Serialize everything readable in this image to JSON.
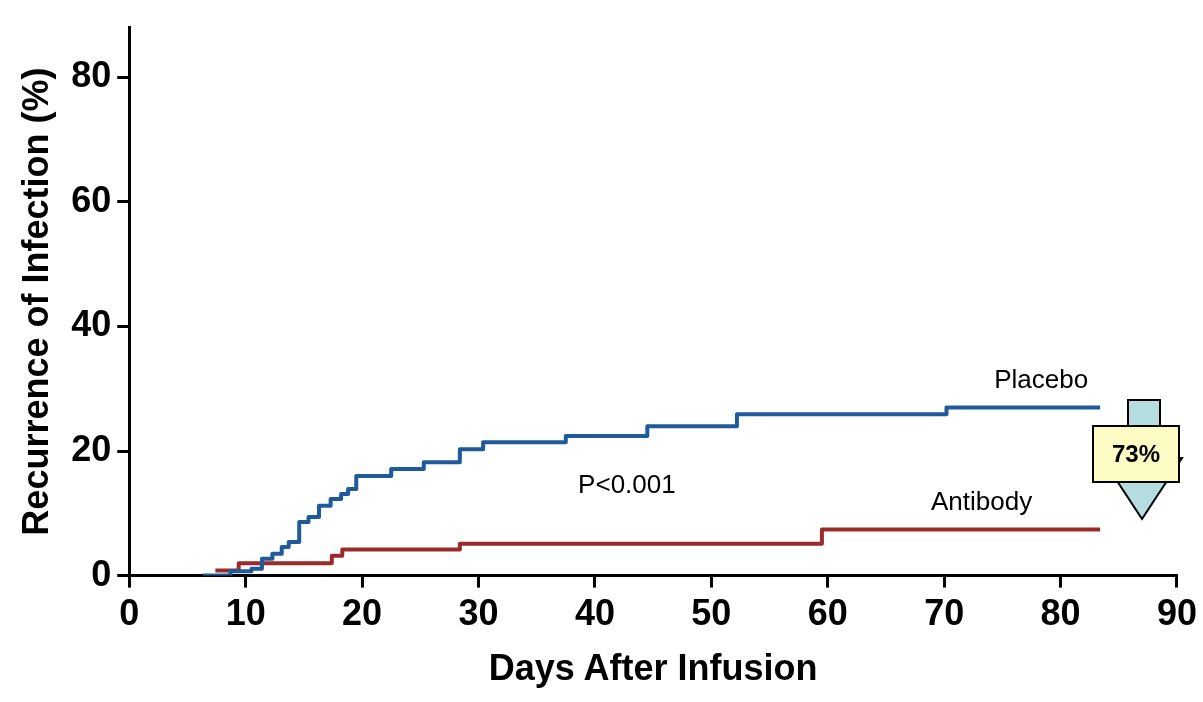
{
  "chart_data": {
    "type": "step",
    "xlabel": "Days After Infusion",
    "ylabel": "Recurrence of Infection (%)",
    "xlim": [
      0,
      90
    ],
    "xticks": [
      0,
      10,
      20,
      30,
      40,
      50,
      60,
      70,
      80,
      90
    ],
    "ylim": [
      0,
      88
    ],
    "yticks": [
      0,
      20,
      40,
      60,
      80
    ],
    "grid": false,
    "legend": false,
    "marker": "none",
    "line_style": "solid",
    "annotations": [
      "P<0.001",
      "73%"
    ],
    "series": [
      {
        "name": "Placebo",
        "color": "#1f5a9a",
        "x": [
          6.3,
          8.7,
          10.5,
          11.4,
          12.3,
          13.1,
          13.7,
          14.6,
          15.4,
          16.3,
          17.3,
          18.2,
          18.8,
          19.5,
          22.5,
          25.3,
          28.4,
          30.4,
          37.5,
          44.5,
          52.2,
          70.2,
          83.4
        ],
        "values": [
          0,
          0.7,
          1.1,
          2.7,
          3.5,
          4.6,
          5.4,
          8.6,
          9.4,
          11.2,
          12.3,
          13.1,
          13.9,
          16,
          17.1,
          18.2,
          20.3,
          21.4,
          22.4,
          24,
          25.9,
          27,
          27
        ]
      },
      {
        "name": "Antibody",
        "color": "#9b2a2a",
        "x": [
          7.4,
          9.4,
          17.4,
          18.3,
          28.4,
          59.5,
          83.4
        ],
        "values": [
          0.8,
          2,
          3.2,
          4.2,
          5.1,
          7.4,
          7.4
        ]
      }
    ]
  }
}
